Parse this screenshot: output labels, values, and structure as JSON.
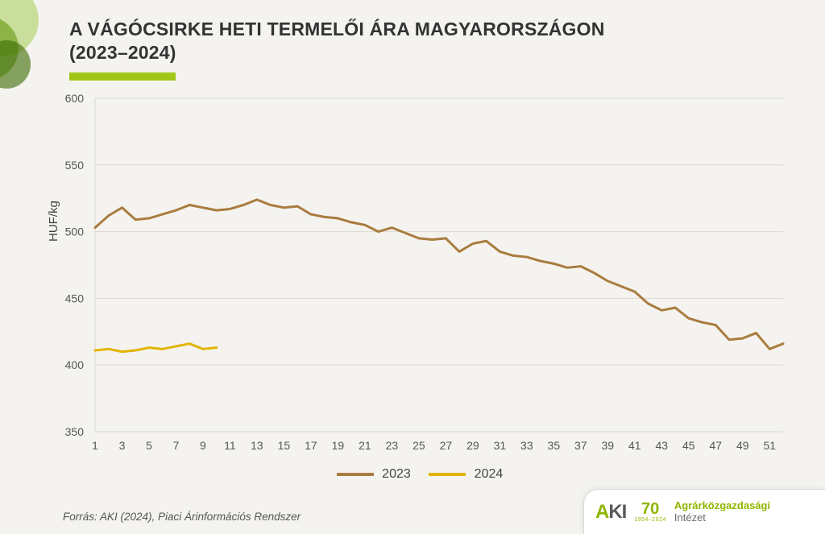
{
  "title_line1": "A VÁGÓCSIRKE HETI TERMELŐI ÁRA MAGYARORSZÁGON",
  "title_line2": "(2023–2024)",
  "ylabel": "HUF/kg",
  "source_text": "Forrás: AKI (2024), Piaci Árinformációs Rendszer",
  "logo": {
    "aki": "A",
    "ki": "KI",
    "anniv": "70",
    "years": "1954–2024",
    "name_top": "Agrárközgazdasági",
    "name_bot": "Intézet"
  },
  "chart": {
    "type": "line",
    "background_color": "#f4f3ef",
    "grid_color": "#d9d8d1",
    "axis_color": "#d9d8d1",
    "text_color": "#555555",
    "label_fontsize": 14,
    "tick_fontsize": 14,
    "ylim": [
      350,
      600
    ],
    "ytick_step": 50,
    "yticks": [
      350,
      400,
      450,
      500,
      550,
      600
    ],
    "x_start": 1,
    "x_end": 52,
    "xtick_step_label": 2,
    "xticks_labeled": [
      1,
      3,
      5,
      7,
      9,
      11,
      13,
      15,
      17,
      19,
      21,
      23,
      25,
      27,
      29,
      31,
      33,
      35,
      37,
      39,
      41,
      43,
      45,
      47,
      49,
      51
    ],
    "line_width": 3,
    "marker_style": "none",
    "series": [
      {
        "name": "2023",
        "color": "#a97c3f",
        "x": [
          1,
          2,
          3,
          4,
          5,
          6,
          7,
          8,
          9,
          10,
          11,
          12,
          13,
          14,
          15,
          16,
          17,
          18,
          19,
          20,
          21,
          22,
          23,
          24,
          25,
          26,
          27,
          28,
          29,
          30,
          31,
          32,
          33,
          34,
          35,
          36,
          37,
          38,
          39,
          40,
          41,
          42,
          43,
          44,
          45,
          46,
          47,
          48,
          49,
          50,
          51,
          52
        ],
        "y": [
          503,
          512,
          518,
          509,
          510,
          513,
          516,
          520,
          518,
          516,
          517,
          520,
          524,
          520,
          518,
          519,
          513,
          511,
          510,
          507,
          505,
          500,
          503,
          499,
          495,
          494,
          495,
          485,
          491,
          493,
          485,
          482,
          481,
          478,
          476,
          473,
          474,
          469,
          463,
          459,
          455,
          446,
          441,
          443,
          435,
          432,
          430,
          419,
          420,
          424,
          412,
          416
        ]
      },
      {
        "name": "2024",
        "color": "#e2b400",
        "x": [
          1,
          2,
          3,
          4,
          5,
          6,
          7,
          8,
          9,
          10
        ],
        "y": [
          411,
          412,
          410,
          411,
          413,
          412,
          414,
          416,
          412,
          413
        ]
      }
    ],
    "legend": {
      "items": [
        "2023",
        "2024"
      ],
      "colors": [
        "#a97c3f",
        "#e2b400"
      ]
    }
  }
}
